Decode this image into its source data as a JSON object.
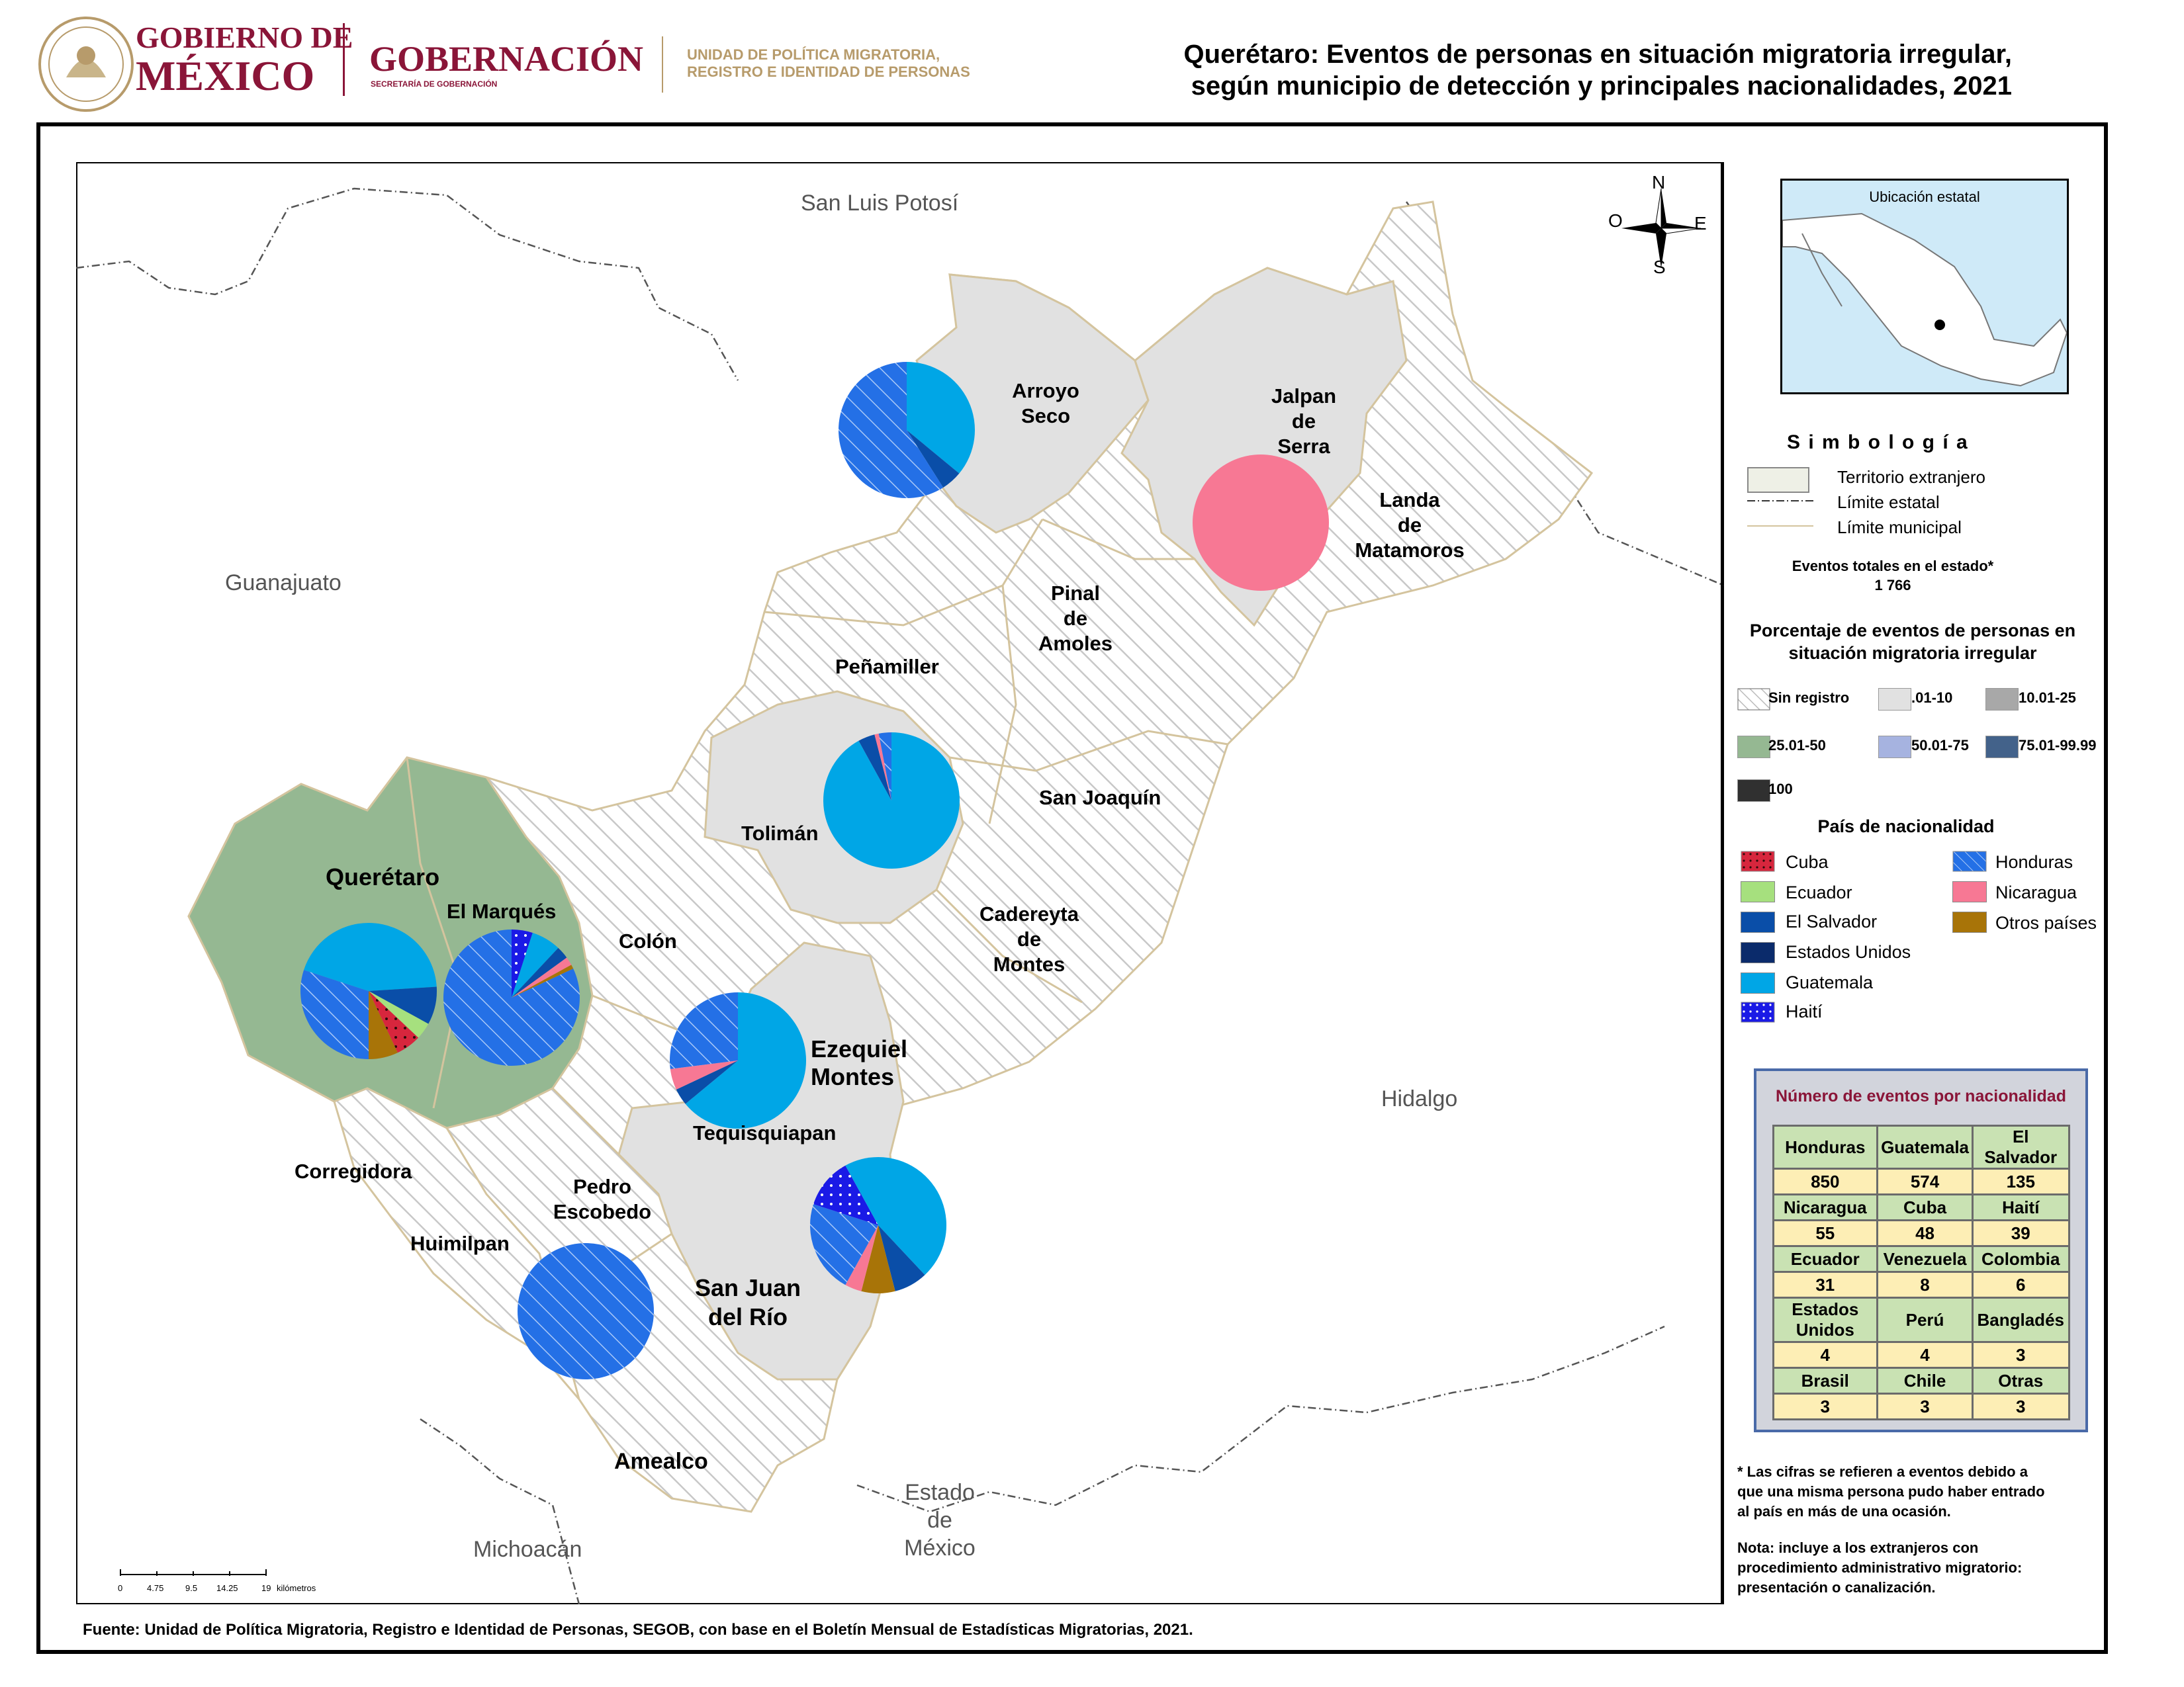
{
  "header": {
    "gob_line1": "GOBIERNO DE",
    "gob_line2": "MÉXICO",
    "secretaria": "GOBERNACIÓN",
    "secretaria_sub": "SECRETARÍA DE GOBERNACIÓN",
    "unit_line1": "UNIDAD DE POLÍTICA MIGRATORIA,",
    "unit_line2": "REGISTRO E IDENTIDAD DE PERSONAS",
    "title_line1": "Querétaro: Eventos de personas en situación migratoria irregular,",
    "title_line2": "según municipio de detección y principales nacionalidades, 2021",
    "brand_color": "#8a1538"
  },
  "map": {
    "neighbors": {
      "slp": "San Luis Potosí",
      "gto": "Guanajuato",
      "hgo": "Hidalgo",
      "mich": "Michoacán",
      "edomex_1": "Estado",
      "edomex_2": "de",
      "edomex_3": "México"
    },
    "municipios": {
      "arroyo_1": "Arroyo",
      "arroyo_2": "Seco",
      "jalpan_1": "Jalpan",
      "jalpan_2": "de",
      "jalpan_3": "Serra",
      "landa_1": "Landa",
      "landa_2": "de",
      "landa_3": "Matamoros",
      "pinal_1": "Pinal",
      "pinal_2": "de",
      "pinal_3": "Amoles",
      "penamiller": "Peñamiller",
      "sanjoaquin": "San Joaquín",
      "toliman": "Tolimán",
      "queretaro": "Querétaro",
      "elmarques": "El Marqués",
      "colon": "Colón",
      "cadereyta_1": "Cadereyta",
      "cadereyta_2": "de",
      "cadereyta_3": "Montes",
      "ezequiel_1": "Ezequiel",
      "ezequiel_2": "Montes",
      "tequis": "Tequisquiapan",
      "corregidora": "Corregidora",
      "pedro_1": "Pedro",
      "pedro_2": "Escobedo",
      "huimilpan": "Huimilpan",
      "sanjuan_1": "San Juan",
      "sanjuan_2": "del Río",
      "amealco": "Amealco"
    },
    "compass": {
      "n": "N",
      "s": "S",
      "e": "E",
      "o": "O"
    },
    "scale": {
      "t0": "0",
      "t1": "4.75",
      "t2": "9.5",
      "t3": "14.25",
      "t4": "19",
      "unit": "kilómetros"
    },
    "colors": {
      "sin_registro": "#ffffff",
      "r01_10": "#e1e1e1",
      "r25_50": "#95b892",
      "pink": "#f77894",
      "border": "#d4c49e"
    }
  },
  "inset": {
    "title": "Ubicación estatal"
  },
  "simbologia": {
    "title": "S i m b o l o g í a",
    "territorio": "Territorio extranjero",
    "limite_estatal": "Límite estatal",
    "limite_municipal": "Límite municipal",
    "total_label": "Eventos totales en el estado*",
    "total_value": "1 766",
    "pct_title_1": "Porcentaje de eventos de personas en",
    "pct_title_2": "situación migratoria irregular",
    "ranges": {
      "sin": "Sin registro",
      "r1": ".01-10",
      "r2": "10.01-25",
      "r3": "25.01-50",
      "r4": "50.01-75",
      "r5": "75.01-99.99",
      "r6": "100"
    },
    "range_colors": {
      "r1": "#e1e1e1",
      "r2": "#a8a8a8",
      "r3": "#95b892",
      "r4": "#a6b3e0",
      "r5": "#43628a",
      "r6": "#303030"
    },
    "pais_title": "País de nacionalidad",
    "paises": {
      "cuba": "Cuba",
      "ecuador": "Ecuador",
      "elsalvador": "El Salvador",
      "eu": "Estados Unidos",
      "guatemala": "Guatemala",
      "haiti": "Haití",
      "honduras": "Honduras",
      "nicaragua": "Nicaragua",
      "otros": "Otros países"
    },
    "pais_colors": {
      "cuba": "#d7263d",
      "ecuador": "#a6e07e",
      "elsalvador": "#0a4ea8",
      "eu": "#0b2b6b",
      "guatemala": "#00a6e6",
      "haiti": "#1a1ae6",
      "honduras": "#2470e6",
      "nicaragua": "#f77894",
      "otros": "#a87408"
    }
  },
  "tabla": {
    "title": "Número de eventos por nacionalidad",
    "rows": [
      {
        "h": [
          "Honduras",
          "Guatemala",
          "El Salvador"
        ],
        "v": [
          "850",
          "574",
          "135"
        ]
      },
      {
        "h": [
          "Nicaragua",
          "Cuba",
          "Haití"
        ],
        "v": [
          "55",
          "48",
          "39"
        ]
      },
      {
        "h": [
          "Ecuador",
          "Venezuela",
          "Colombia"
        ],
        "v": [
          "31",
          "8",
          "6"
        ]
      },
      {
        "h": [
          "Estados Unidos",
          "Perú",
          "Bangladés"
        ],
        "v": [
          "4",
          "4",
          "3"
        ]
      },
      {
        "h": [
          "Brasil",
          "Chile",
          "Otras"
        ],
        "v": [
          "3",
          "3",
          "3"
        ]
      }
    ]
  },
  "notas": {
    "n1_1": "* Las cifras se refieren a eventos debido a",
    "n1_2": "que una misma persona pudo haber entrado",
    "n1_3": "al país en más de una ocasión.",
    "n2_1": "Nota: incluye a los extranjeros con",
    "n2_2": "procedimiento administrativo migratorio:",
    "n2_3": "presentación o canalización."
  },
  "fuente": "Fuente: Unidad de Política Migratoria, Registro e Identidad de Personas, SEGOB, con base en el Boletín Mensual de Estadísticas Migratorias, 2021.",
  "pies": [
    {
      "id": "arroyo-seco",
      "slices": [
        [
          "guatemala",
          0.36
        ],
        [
          "elsalvador",
          0.05
        ],
        [
          "honduras",
          0.59
        ]
      ]
    },
    {
      "id": "jalpan",
      "slices": [
        [
          "nicaragua",
          1.0
        ]
      ]
    },
    {
      "id": "toliman",
      "slices": [
        [
          "guatemala",
          0.92
        ],
        [
          "elsalvador",
          0.04
        ],
        [
          "nicaragua",
          0.01
        ],
        [
          "honduras",
          0.03
        ]
      ]
    },
    {
      "id": "queretaro",
      "slices": [
        [
          "guatemala",
          0.24
        ],
        [
          "elsalvador",
          0.09
        ],
        [
          "ecuador",
          0.04
        ],
        [
          "cuba",
          0.06
        ],
        [
          "otros",
          0.07
        ],
        [
          "honduras",
          0.3
        ],
        [
          "guatemala",
          0.2
        ]
      ]
    },
    {
      "id": "el-marques",
      "slices": [
        [
          "haiti",
          0.05
        ],
        [
          "guatemala",
          0.07
        ],
        [
          "elsalvador",
          0.03
        ],
        [
          "nicaragua",
          0.02
        ],
        [
          "otros",
          0.01
        ],
        [
          "honduras",
          0.82
        ]
      ]
    },
    {
      "id": "ezequiel",
      "slices": [
        [
          "guatemala",
          0.64
        ],
        [
          "elsalvador",
          0.04
        ],
        [
          "nicaragua",
          0.05
        ],
        [
          "honduras",
          0.27
        ]
      ]
    },
    {
      "id": "pedro-escobedo",
      "slices": [
        [
          "honduras",
          1.0
        ]
      ]
    },
    {
      "id": "san-juan",
      "slices": [
        [
          "guatemala",
          0.38
        ],
        [
          "elsalvador",
          0.08
        ],
        [
          "otros",
          0.08
        ],
        [
          "nicaragua",
          0.04
        ],
        [
          "honduras",
          0.22
        ],
        [
          "haiti",
          0.12
        ],
        [
          "guatemala",
          0.08
        ]
      ]
    }
  ]
}
